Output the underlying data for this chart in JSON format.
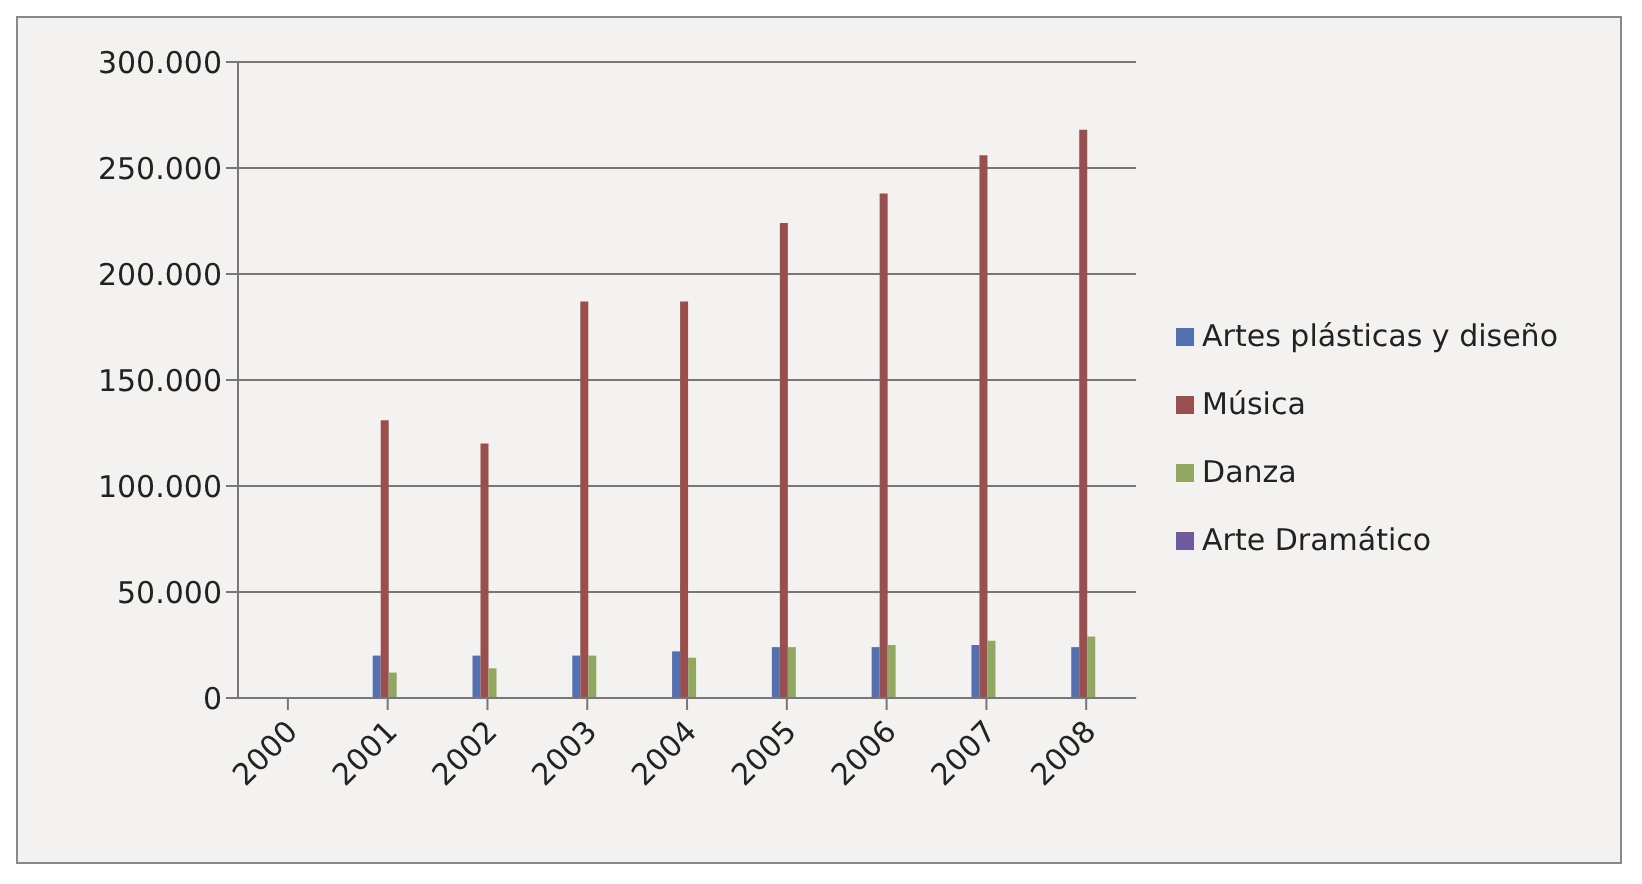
{
  "chart_data": {
    "type": "bar",
    "categories": [
      "2000",
      "2001",
      "2002",
      "2003",
      "2004",
      "2005",
      "2006",
      "2007",
      "2008"
    ],
    "series": [
      {
        "name": "Artes plásticas y diseño",
        "color": "#5470b0",
        "values": [
          null,
          20000,
          20000,
          20000,
          22000,
          24000,
          24000,
          25000,
          24000
        ]
      },
      {
        "name": "Música",
        "color": "#9a4f4f",
        "values": [
          null,
          131000,
          120000,
          187000,
          187000,
          224000,
          238000,
          256000,
          268000
        ]
      },
      {
        "name": "Danza",
        "color": "#90a860",
        "values": [
          null,
          12000,
          14000,
          20000,
          19000,
          24000,
          25000,
          27000,
          29000
        ]
      },
      {
        "name": "Arte Dramático",
        "color": "#6f5a9e",
        "values": [
          null,
          null,
          null,
          null,
          null,
          null,
          null,
          null,
          null
        ]
      }
    ],
    "ylim": [
      0,
      300000
    ],
    "yticks": [
      {
        "value": 0,
        "label": "0"
      },
      {
        "value": 50000,
        "label": "50.000"
      },
      {
        "value": 100000,
        "label": "100.000"
      },
      {
        "value": 150000,
        "label": "150.000"
      },
      {
        "value": 200000,
        "label": "200.000"
      },
      {
        "value": 250000,
        "label": "250.000"
      },
      {
        "value": 300000,
        "label": "300.000"
      }
    ],
    "grid": "y",
    "legend": "right"
  }
}
